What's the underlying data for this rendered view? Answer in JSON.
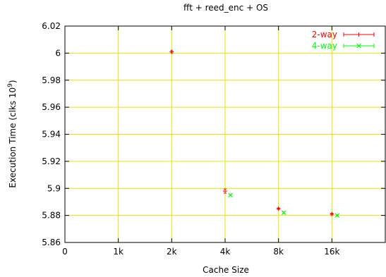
{
  "chart_data": {
    "type": "scatter",
    "title": "fft + reed_enc + OS",
    "xlabel": "Cache Size",
    "ylabel": "Execution Time (clks 10",
    "ylabel_superscript": "9",
    "ylabel_suffix": ")",
    "xlim": [
      0,
      6
    ],
    "ylim": [
      5.86,
      6.02
    ],
    "x_tick_values": [
      0,
      1,
      2,
      3,
      4,
      5
    ],
    "x_tick_labels": [
      "0",
      "1k",
      "2k",
      "4k",
      "8k",
      "16k"
    ],
    "y_ticks": [
      5.86,
      5.88,
      5.9,
      5.92,
      5.94,
      5.96,
      5.98,
      6,
      6.02
    ],
    "y_tick_labels": [
      "5.86",
      "5.88",
      "5.9",
      "5.92",
      "5.94",
      "5.96",
      "5.98",
      "6",
      "6.02"
    ],
    "grid": true,
    "legend_position": "top-right",
    "series": [
      {
        "name": "2-way",
        "color": "#ff0000",
        "marker": "plus",
        "points": [
          {
            "x": 2.0,
            "y": 6.001,
            "err": 0.0008
          },
          {
            "x": 3.0,
            "y": 5.898,
            "err": 0.0015
          },
          {
            "x": 4.0,
            "y": 5.885,
            "err": 0.0005
          },
          {
            "x": 5.0,
            "y": 5.881,
            "err": 0.0006
          }
        ]
      },
      {
        "name": "4-way",
        "color": "#00ff00",
        "marker": "cross",
        "points": [
          {
            "x": 3.1,
            "y": 5.895,
            "err": 0.0006
          },
          {
            "x": 4.1,
            "y": 5.882,
            "err": 0.0006
          },
          {
            "x": 5.1,
            "y": 5.88,
            "err": 0.0005
          }
        ]
      }
    ]
  }
}
